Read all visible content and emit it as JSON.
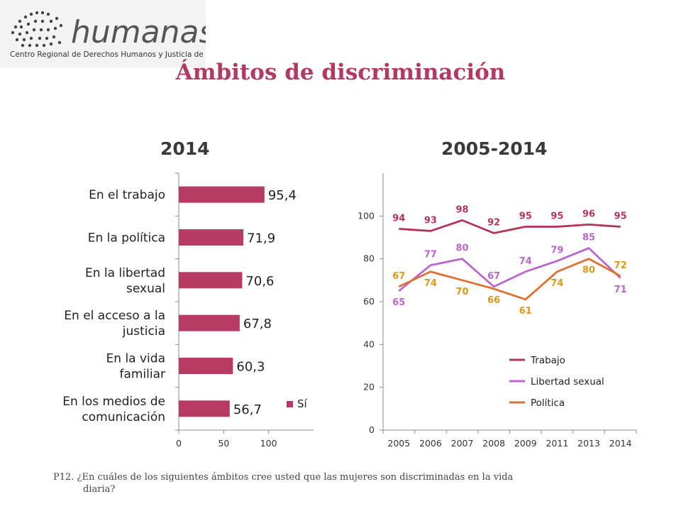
{
  "logo": {
    "wordmark": "humanas",
    "tagline": "Centro Regional de Derechos Humanos y Justicia de Género"
  },
  "title": "Ámbitos de discriminación",
  "subtitles": {
    "left": "2014",
    "right": "2005-2014"
  },
  "colors": {
    "bar": "#b83b63",
    "title": "#b03a62",
    "trabajo": "#b2365b",
    "libertad": "#b768c8",
    "politica": "#dd7131",
    "politica_label": "#d99a1a"
  },
  "chart_data": [
    {
      "type": "bar",
      "orientation": "horizontal",
      "title": "2014",
      "categories": [
        "En el trabajo",
        "En la política",
        "En la libertad sexual",
        "En el acceso a la justicia",
        "En la vida familiar",
        "En los medios de comunicación"
      ],
      "category_lines": [
        [
          "En el trabajo"
        ],
        [
          "En la política"
        ],
        [
          "En la libertad",
          "sexual"
        ],
        [
          "En el acceso a la",
          "justicia"
        ],
        [
          "En la vida",
          "familiar"
        ],
        [
          "En los medios de",
          "comunicación"
        ]
      ],
      "series": [
        {
          "name": "Sí",
          "values": [
            95.4,
            71.9,
            70.6,
            67.8,
            60.3,
            56.7
          ]
        }
      ],
      "data_labels": [
        "95,4",
        "71,9",
        "70,6",
        "67,8",
        "60,3",
        "56,7"
      ],
      "xlim": [
        0,
        150
      ],
      "xticks": [
        "0",
        "50",
        "100"
      ],
      "legend": "bottom-right"
    },
    {
      "type": "line",
      "title": "2005-2014",
      "categories": [
        "2005",
        "2006",
        "2007",
        "2008",
        "2009",
        "2011",
        "2013",
        "2014"
      ],
      "series": [
        {
          "name": "Trabajo",
          "values": [
            94,
            93,
            98,
            92,
            95,
            95,
            96,
            95
          ]
        },
        {
          "name": "Libertad sexual",
          "values": [
            65,
            77,
            80,
            67,
            74,
            79,
            85,
            71
          ]
        },
        {
          "name": "Política",
          "values": [
            67,
            74,
            70,
            66,
            61,
            74,
            80,
            72
          ]
        }
      ],
      "ylim": [
        0,
        120
      ],
      "yticks": [
        "0",
        "20",
        "40",
        "60",
        "80",
        "100"
      ],
      "legend": "bottom-right"
    }
  ],
  "footnote": {
    "line1": "P12. ¿En cuáles de los siguientes ámbitos cree usted que las mujeres son discriminadas en la vida",
    "line2": "diaria?"
  }
}
